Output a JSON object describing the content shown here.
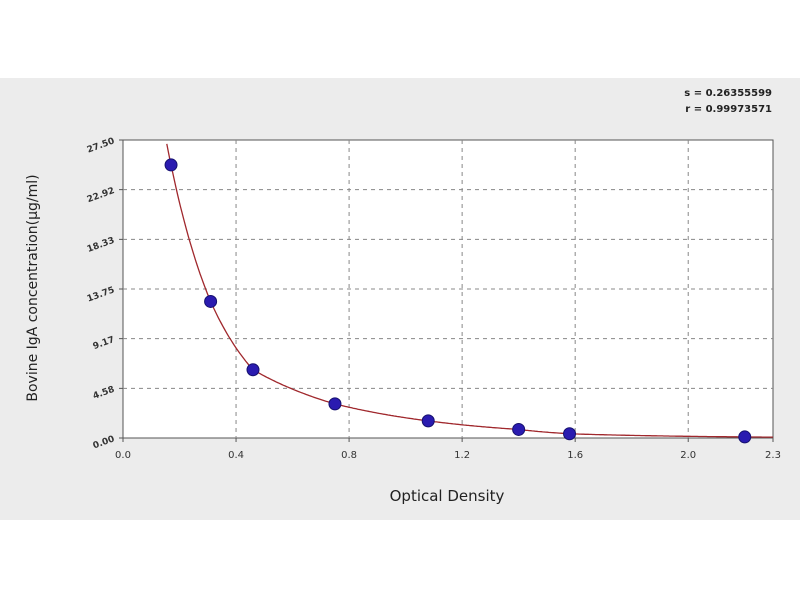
{
  "stats": {
    "s_line": "s = 0.26355599",
    "r_line": "r = 0.99973571"
  },
  "chart_data": {
    "type": "scatter",
    "title": "",
    "xlabel": "Optical Density",
    "ylabel": "Bovine IgA concentration(μg/ml)",
    "xlim": [
      0.0,
      2.3
    ],
    "ylim": [
      0.0,
      27.5
    ],
    "x_ticks": [
      "0.0",
      "0.4",
      "0.8",
      "1.2",
      "1.6",
      "2.0",
      "2.3"
    ],
    "y_ticks": [
      "0.00",
      "4.58",
      "9.17",
      "13.75",
      "18.33",
      "22.92",
      "27.50"
    ],
    "grid": true,
    "series": [
      {
        "points": [
          {
            "x": 0.17,
            "y": 25.2
          },
          {
            "x": 0.31,
            "y": 12.6
          },
          {
            "x": 0.46,
            "y": 6.3
          },
          {
            "x": 0.75,
            "y": 3.15
          },
          {
            "x": 1.08,
            "y": 1.58
          },
          {
            "x": 1.4,
            "y": 0.79
          },
          {
            "x": 1.58,
            "y": 0.39
          },
          {
            "x": 2.2,
            "y": 0.1
          }
        ],
        "marker_color": "#2a1bb0",
        "fit_line_color": "#a0282d"
      }
    ]
  }
}
